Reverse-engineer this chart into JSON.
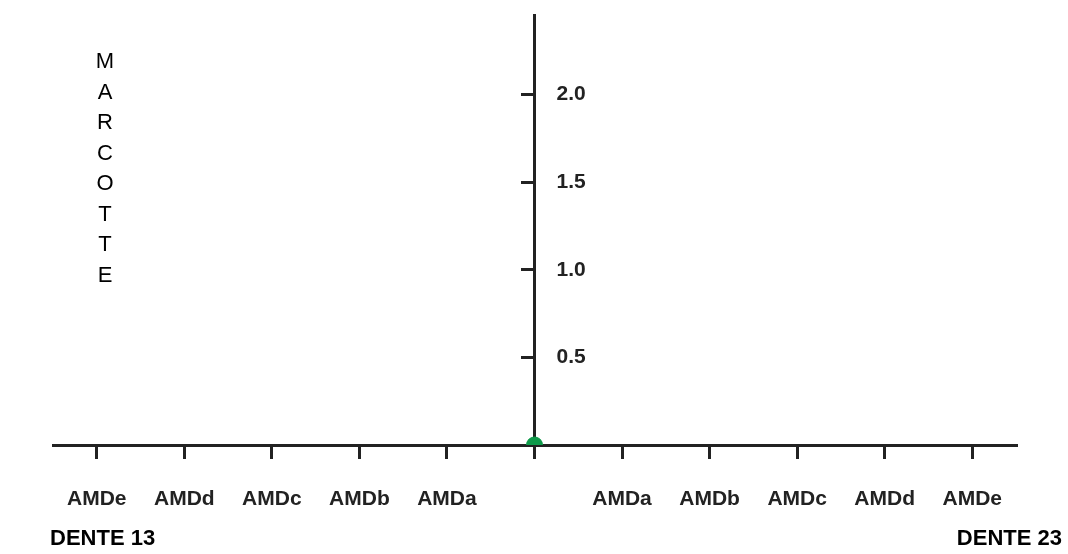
{
  "chart_data": {
    "type": "scatter",
    "ylabel": "MARCOTTE",
    "categories": [
      "AMDe",
      "AMDd",
      "AMDc",
      "AMDb",
      "AMDa",
      null,
      "AMDa",
      "AMDb",
      "AMDc",
      "AMDd",
      "AMDe"
    ],
    "series": [
      {
        "color": "#0e9a4a",
        "values": [
          null,
          null,
          null,
          null,
          null,
          0,
          null,
          null,
          null,
          null,
          null
        ]
      }
    ],
    "marker": "circle",
    "ylim": [
      0,
      2.45
    ],
    "yticks": [
      {
        "value": 0,
        "label": null
      },
      0.5,
      {
        "value": 1,
        "label": "1.0"
      },
      1.5,
      {
        "value": 2,
        "label": "2.0"
      }
    ],
    "annotations": [
      "DENTE 13",
      "DENTE 23"
    ],
    "grid": false,
    "legend": false
  }
}
